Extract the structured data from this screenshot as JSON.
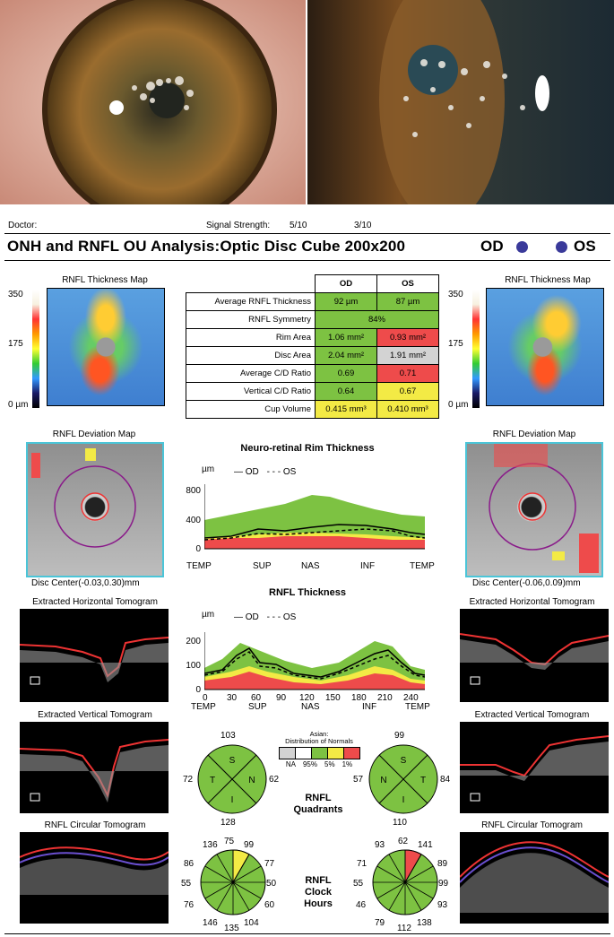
{
  "header": {
    "doctor_label": "Doctor:",
    "signal_label": "Signal Strength:",
    "signal_od": "5/10",
    "signal_os": "3/10",
    "title": "ONH and RNFL OU Analysis:Optic Disc Cube 200x200",
    "od": "OD",
    "os": "OS"
  },
  "thickness_map": {
    "title": "RNFL Thickness Map",
    "scale_top": "350",
    "scale_mid": "175",
    "scale_bottom": "0 µm"
  },
  "table": {
    "col_od": "OD",
    "col_os": "OS",
    "rows": [
      {
        "label": "Average RNFL Thickness",
        "od": "92 µm",
        "os": "87 µm"
      },
      {
        "label": "RNFL Symmetry",
        "both": "84%"
      },
      {
        "label": "Rim Area",
        "od": "1.06 mm²",
        "os": "0.93 mm²"
      },
      {
        "label": "Disc Area",
        "od": "2.04 mm²",
        "os": "1.91 mm²"
      },
      {
        "label": "Average C/D Ratio",
        "od": "0.69",
        "os": "0.71"
      },
      {
        "label": "Vertical C/D Ratio",
        "od": "0.64",
        "os": "0.67"
      },
      {
        "label": "Cup Volume",
        "od": "0.415 mm³",
        "os": "0.410 mm³"
      }
    ]
  },
  "deviation": {
    "title": "RNFL Deviation Map",
    "od_center": "Disc Center(-0.03,0.30)mm",
    "os_center": "Disc Center(-0.06,0.09)mm"
  },
  "rim_chart": {
    "title": "Neuro-retinal Rim Thickness",
    "unit": "µm",
    "legend_od": "OD",
    "legend_os": "OS",
    "yticks": [
      "800",
      "400",
      "0"
    ],
    "xticks": [
      "TEMP",
      "SUP",
      "NAS",
      "INF",
      "TEMP"
    ]
  },
  "rnfl_chart": {
    "title": "RNFL Thickness",
    "unit": "µm",
    "legend_od": "OD",
    "legend_os": "OS",
    "yticks": [
      "200",
      "100",
      "0"
    ],
    "xticks": [
      "0",
      "30",
      "60",
      "90",
      "120",
      "150",
      "180",
      "210",
      "240"
    ],
    "xlabels": [
      "TEMP",
      "SUP",
      "NAS",
      "INF",
      "TEMP"
    ]
  },
  "tomograms": {
    "horizontal": "Extracted Horizontal Tomogram",
    "vertical": "Extracted Vertical Tomogram",
    "circular": "RNFL Circular Tomogram"
  },
  "quadrants": {
    "label_line1": "RNFL",
    "label_line2": "Quadrants",
    "od": {
      "top": "103",
      "left": "72",
      "right": "62",
      "bottom": "128"
    },
    "os": {
      "top": "99",
      "left": "57",
      "right": "84",
      "bottom": "110"
    },
    "od_letters": [
      "S",
      "T",
      "N",
      "I"
    ],
    "os_letters": [
      "S",
      "N",
      "T",
      "I"
    ]
  },
  "legend": {
    "line1": "Asian:",
    "line2": "Distribution of Normals",
    "labels": [
      "NA",
      "95%",
      "5%",
      "1%"
    ]
  },
  "clock": {
    "label_line1": "RNFL",
    "label_line2": "Clock",
    "label_line3": "Hours",
    "od": [
      "136",
      "75",
      "99",
      "86",
      "77",
      "55",
      "50",
      "76",
      "60",
      "146",
      "135",
      "104"
    ],
    "os": [
      "93",
      "62",
      "141",
      "71",
      "89",
      "55",
      "99",
      "46",
      "93",
      "79",
      "112",
      "138"
    ]
  },
  "colors": {
    "green": "#7dc242",
    "yellow": "#f3ea45",
    "red": "#ee4b4b",
    "gray": "#d3d3d3",
    "disc_blue": "#3a3a9a"
  }
}
